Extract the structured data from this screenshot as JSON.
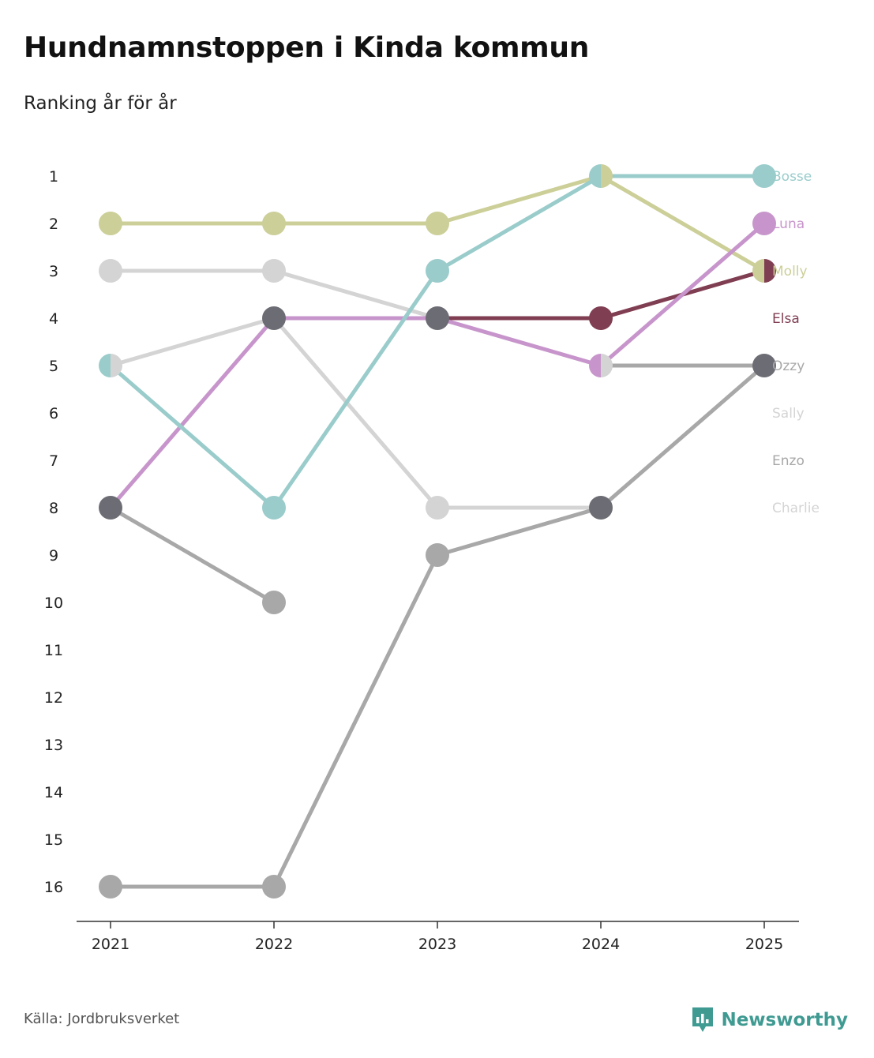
{
  "title": "Hundnamnstoppen i Kinda kommun",
  "subtitle": "Ranking år för år",
  "source": "Källa: Jordbruksverket",
  "brand": "Newsworthy",
  "colors": {
    "brand": "#3f9a92"
  },
  "chart_data": {
    "type": "line",
    "subtype": "bump",
    "title": "Hundnamnstoppen i Kinda kommun",
    "subtitle": "Ranking år för år",
    "x": [
      "2021",
      "2022",
      "2023",
      "2024",
      "2025"
    ],
    "y_ticks": [
      1,
      2,
      3,
      4,
      5,
      6,
      7,
      8,
      9,
      10,
      11,
      12,
      13,
      14,
      15,
      16
    ],
    "ylim": [
      1,
      16
    ],
    "y_inverted": true,
    "series": [
      {
        "name": "Charlie",
        "color": "#d4d4d4",
        "values": [
          5,
          4,
          8,
          8,
          null
        ]
      },
      {
        "name": "Sally",
        "color": "#d4d4d4",
        "values": [
          3,
          3,
          4,
          null,
          null
        ]
      },
      {
        "name": "Enzo",
        "color": "#a8a8a8",
        "values": [
          16,
          16,
          9,
          8,
          5
        ]
      },
      {
        "name": "Ozzy",
        "color": "#a8a8a8",
        "values": [
          8,
          10,
          null,
          5,
          5
        ]
      },
      {
        "name": "Elsa",
        "color": "#803e52",
        "values": [
          null,
          null,
          4,
          4,
          3
        ]
      },
      {
        "name": "Molly",
        "color": "#cccf98",
        "values": [
          2,
          2,
          2,
          1,
          3
        ]
      },
      {
        "name": "Luna",
        "color": "#c795cb",
        "values": [
          8,
          4,
          4,
          5,
          2
        ]
      },
      {
        "name": "Bosse",
        "color": "#99cccb",
        "values": [
          5,
          8,
          3,
          1,
          1
        ]
      }
    ],
    "end_label_order": [
      "Bosse",
      "Luna",
      "Molly",
      "Elsa",
      "Ozzy",
      "Sally",
      "Enzo",
      "Charlie"
    ],
    "end_label_colors": {
      "Bosse": "#99cccb",
      "Luna": "#c795cb",
      "Molly": "#cccf98",
      "Elsa": "#803e52",
      "Ozzy": "#a8a8a8",
      "Sally": "#d4d4d4",
      "Enzo": "#a8a8a8",
      "Charlie": "#d4d4d4"
    },
    "markers": [
      {
        "x": "2021",
        "rank": 2,
        "colors": [
          "#cccf98"
        ]
      },
      {
        "x": "2021",
        "rank": 3,
        "colors": [
          "#d4d4d4"
        ]
      },
      {
        "x": "2021",
        "rank": 5,
        "colors": [
          "#99cccb",
          "#d4d4d4"
        ]
      },
      {
        "x": "2021",
        "rank": 8,
        "colors": [
          "#6c6c74"
        ]
      },
      {
        "x": "2021",
        "rank": 16,
        "colors": [
          "#a8a8a8"
        ]
      },
      {
        "x": "2022",
        "rank": 2,
        "colors": [
          "#cccf98"
        ]
      },
      {
        "x": "2022",
        "rank": 3,
        "colors": [
          "#d4d4d4"
        ]
      },
      {
        "x": "2022",
        "rank": 4,
        "colors": [
          "#6c6c74"
        ]
      },
      {
        "x": "2022",
        "rank": 8,
        "colors": [
          "#99cccb"
        ]
      },
      {
        "x": "2022",
        "rank": 10,
        "colors": [
          "#a8a8a8"
        ]
      },
      {
        "x": "2022",
        "rank": 16,
        "colors": [
          "#a8a8a8"
        ]
      },
      {
        "x": "2023",
        "rank": 2,
        "colors": [
          "#cccf98"
        ]
      },
      {
        "x": "2023",
        "rank": 3,
        "colors": [
          "#99cccb"
        ]
      },
      {
        "x": "2023",
        "rank": 4,
        "colors": [
          "#6c6c74"
        ]
      },
      {
        "x": "2023",
        "rank": 8,
        "colors": [
          "#d4d4d4"
        ]
      },
      {
        "x": "2023",
        "rank": 9,
        "colors": [
          "#a8a8a8"
        ]
      },
      {
        "x": "2024",
        "rank": 1,
        "colors": [
          "#99cccb",
          "#cccf98"
        ]
      },
      {
        "x": "2024",
        "rank": 4,
        "colors": [
          "#803e52"
        ]
      },
      {
        "x": "2024",
        "rank": 5,
        "colors": [
          "#c795cb",
          "#d4d4d4"
        ]
      },
      {
        "x": "2024",
        "rank": 8,
        "colors": [
          "#6c6c74"
        ]
      },
      {
        "x": "2025",
        "rank": 1,
        "colors": [
          "#99cccb"
        ]
      },
      {
        "x": "2025",
        "rank": 2,
        "colors": [
          "#c795cb"
        ]
      },
      {
        "x": "2025",
        "rank": 3,
        "colors": [
          "#cccf98",
          "#803e52"
        ]
      },
      {
        "x": "2025",
        "rank": 5,
        "colors": [
          "#6c6c74"
        ]
      }
    ]
  }
}
